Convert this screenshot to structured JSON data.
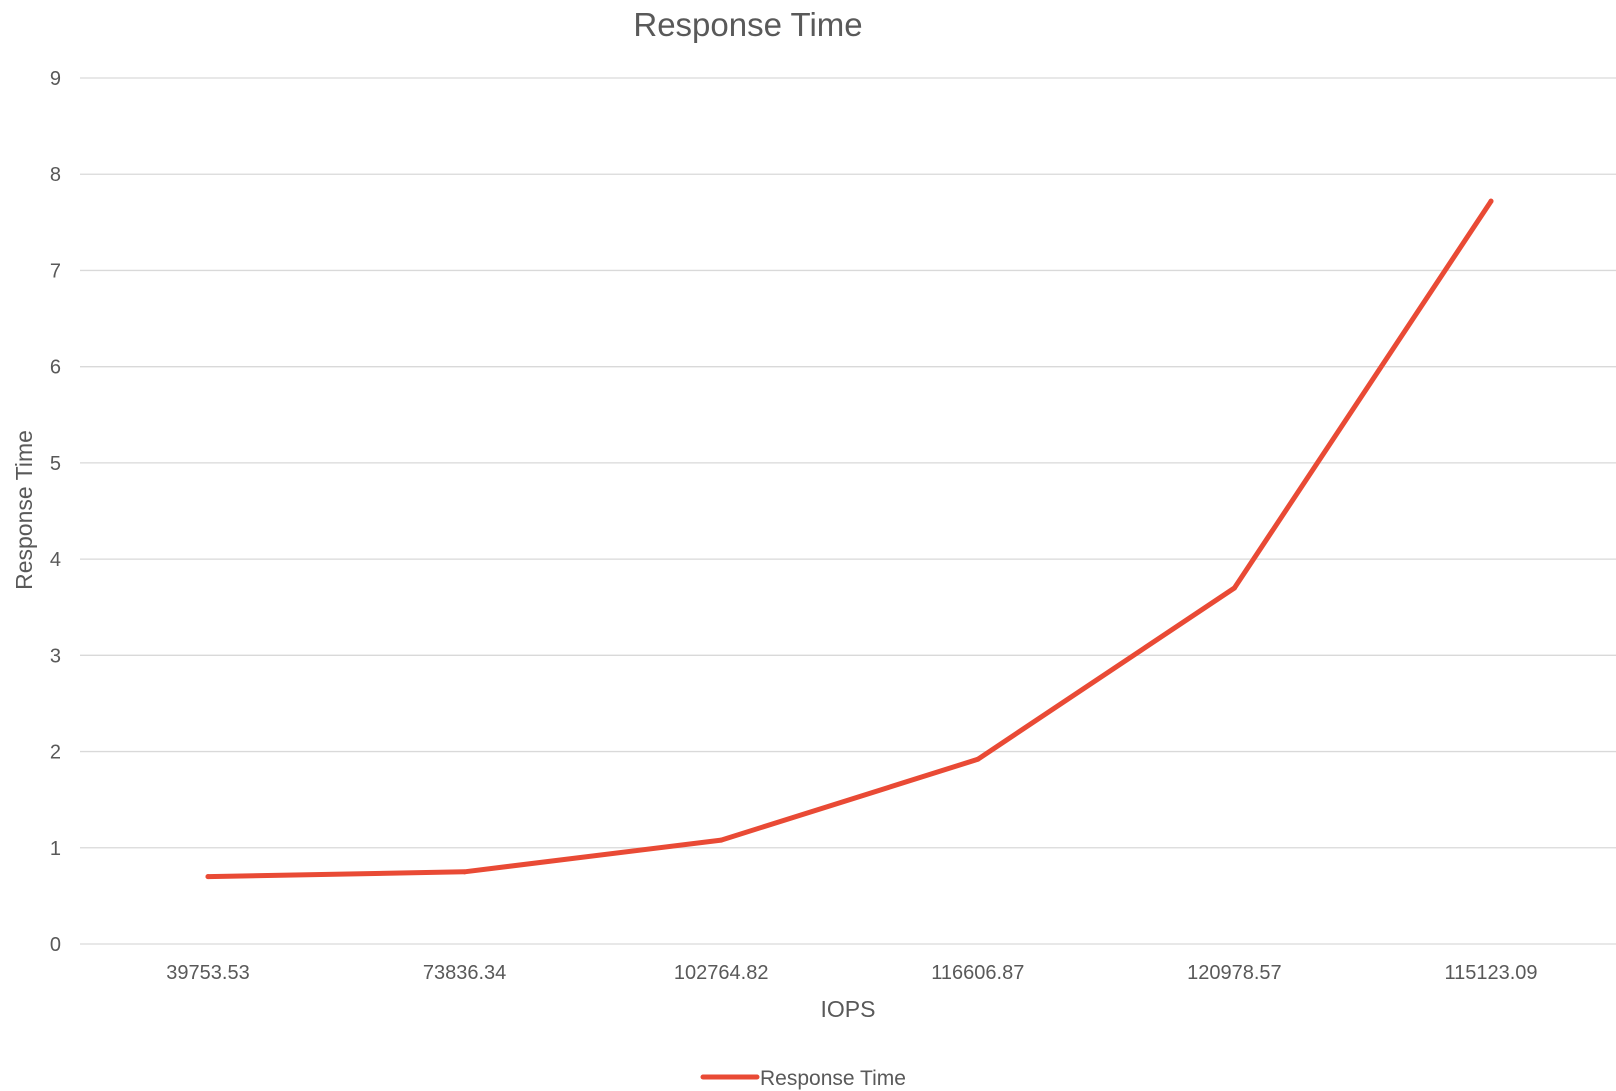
{
  "chart_data": {
    "type": "line",
    "title": "Response Time",
    "xlabel": "IOPS",
    "ylabel": "Response Time",
    "categories": [
      "39753.53",
      "73836.34",
      "102764.82",
      "116606.87",
      "120978.57",
      "115123.09"
    ],
    "series": [
      {
        "name": "Response Time",
        "values": [
          0.7,
          0.75,
          1.08,
          1.92,
          3.7,
          7.72
        ],
        "color": "#e94a35"
      }
    ],
    "ylim": [
      0,
      9
    ],
    "yticks": [
      0,
      1,
      2,
      3,
      4,
      5,
      6,
      7,
      8,
      9
    ],
    "grid": true,
    "legend": "bottom"
  }
}
